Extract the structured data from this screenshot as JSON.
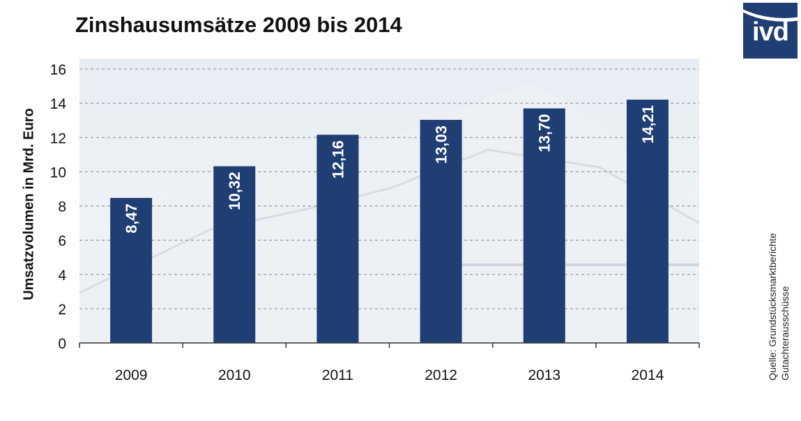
{
  "header": {
    "title": "Zinshausumsätze 2009 bis 2014",
    "logo_text": "ivd"
  },
  "source": {
    "line1": "Quelle: Grundstücksmarktberichte",
    "line2": "Gutachterausschüsse"
  },
  "colors": {
    "bar": "#1f3e73",
    "bar_label": "#ffffff",
    "grid": "#888888",
    "background_photo": "#dfe7ef"
  },
  "chart_data": {
    "type": "bar",
    "title": "Zinshausumsätze 2009 bis 2014",
    "xlabel": "",
    "ylabel": "Umsatzvolumen in Mrd. Euro",
    "categories": [
      "2009",
      "2010",
      "2011",
      "2012",
      "2013",
      "2014"
    ],
    "values": [
      8.47,
      10.32,
      12.16,
      13.03,
      13.7,
      14.21
    ],
    "value_labels": [
      "8,47",
      "10,32",
      "12,16",
      "13,03",
      "13,70",
      "14,21"
    ],
    "ylim": [
      0,
      16
    ],
    "yticks": [
      0,
      2,
      4,
      6,
      8,
      10,
      12,
      14,
      16
    ],
    "grid": true,
    "legend": "none"
  }
}
